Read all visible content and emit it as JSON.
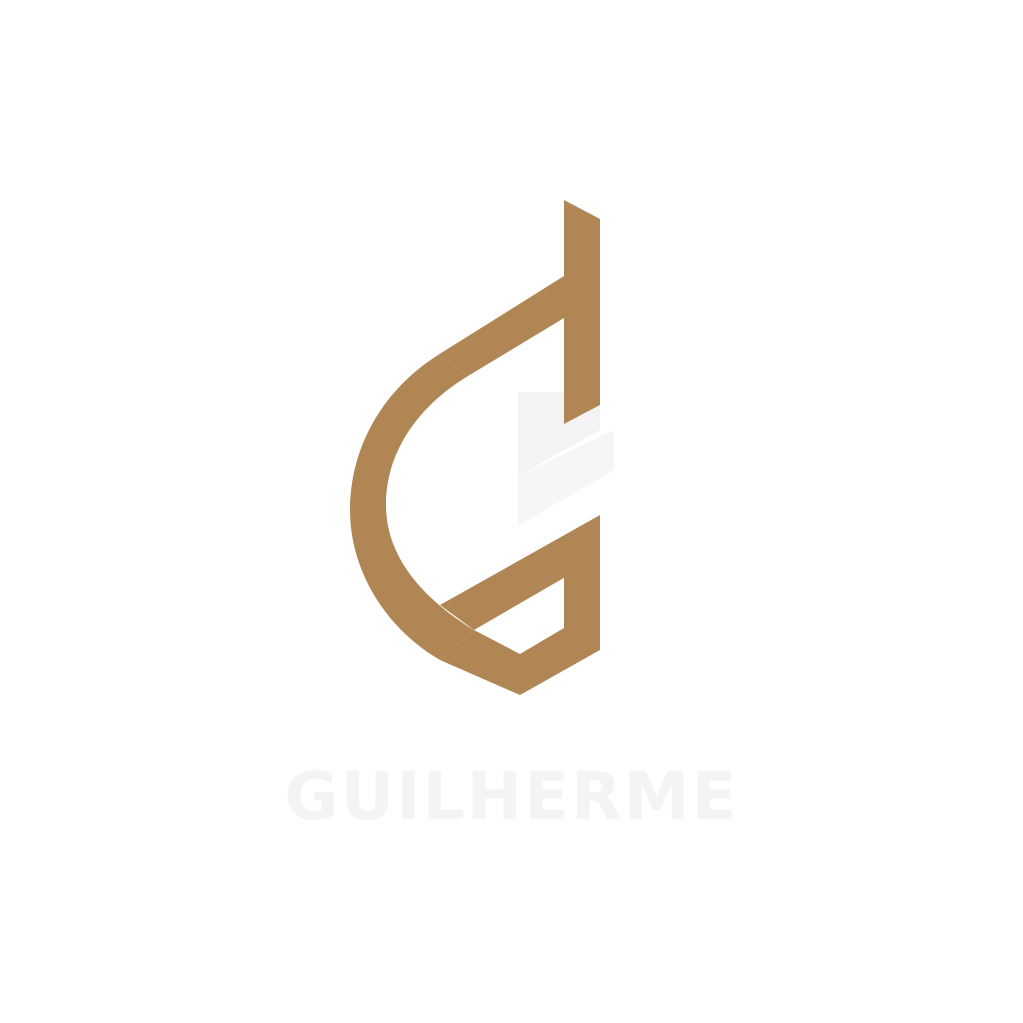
{
  "logo": {
    "wordmark": "GUILHERME",
    "colors": {
      "mark": "#B08655",
      "wordmark": "#F4F4F4",
      "background": "#FFFFFF"
    },
    "icon": "stylized-g-monogram-icon"
  }
}
